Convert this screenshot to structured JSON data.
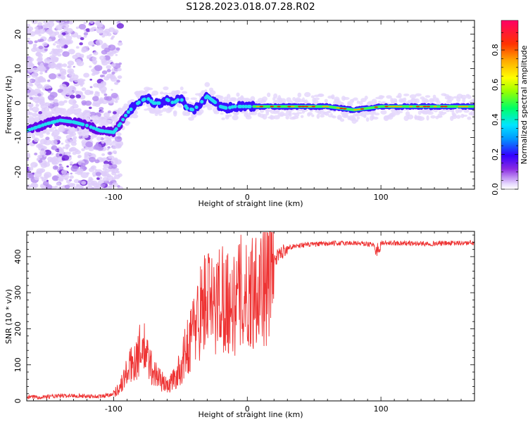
{
  "title": "S128.2023.018.07.28.R02",
  "chart_data": [
    {
      "type": "heatmap",
      "xlabel": "Height of straight line (km)",
      "ylabel": "Frequency (Hz)",
      "xlim": [
        -165,
        170
      ],
      "ylim": [
        -25,
        24
      ],
      "xticks": [
        -100,
        0,
        100
      ],
      "yticks": [
        -20,
        -10,
        0,
        10,
        20
      ],
      "colorbar": {
        "label": "Normalized spectral amplitude",
        "range": [
          0,
          0.97
        ],
        "ticks": [
          0.0,
          0.2,
          0.4,
          0.6,
          0.8
        ]
      },
      "ridge": {
        "x": [
          -165,
          -150,
          -140,
          -130,
          -120,
          -110,
          -100,
          -95,
          -90,
          -85,
          -80,
          -75,
          -70,
          -65,
          -60,
          -55,
          -50,
          -45,
          -40,
          -35,
          -30,
          -25,
          -20,
          -15,
          -10,
          -5,
          0,
          10,
          20,
          40,
          60,
          70,
          80,
          90,
          100,
          120,
          140,
          170
        ],
        "y": [
          -8,
          -6,
          -5,
          -5.5,
          -6.5,
          -8,
          -8.5,
          -6,
          -3,
          -1,
          0.5,
          1.5,
          0,
          0,
          1,
          0,
          1.5,
          -1.5,
          -2,
          0,
          2,
          0.5,
          -1,
          -1.5,
          -1,
          -1,
          -1,
          -1,
          -1,
          -1,
          -1,
          -1.5,
          -2,
          -1.5,
          -1,
          -1,
          -1,
          -1
        ]
      },
      "scatter_range": [
        -165,
        -95
      ]
    },
    {
      "type": "line",
      "xlabel": "Height of straight line (km)",
      "ylabel": "SNR (10 * v/v)",
      "xlim": [
        -165,
        170
      ],
      "ylim": [
        0,
        470
      ],
      "xticks": [
        -100,
        0,
        100
      ],
      "yticks": [
        0,
        100,
        200,
        300,
        400
      ],
      "series": [
        {
          "color": "#ee3333",
          "x": [
            -165,
            -150,
            -130,
            -110,
            -100,
            -95,
            -90,
            -85,
            -80,
            -78,
            -75,
            -70,
            -65,
            -60,
            -55,
            -50,
            -45,
            -40,
            -35,
            -30,
            -25,
            -20,
            -15,
            -10,
            -5,
            0,
            5,
            10,
            15,
            20,
            25,
            30,
            40,
            50,
            60,
            80,
            95,
            100,
            110,
            130,
            150,
            170
          ],
          "y": [
            10,
            12,
            15,
            12,
            20,
            40,
            80,
            110,
            140,
            150,
            120,
            80,
            60,
            40,
            60,
            90,
            150,
            200,
            250,
            290,
            250,
            300,
            280,
            260,
            300,
            280,
            320,
            340,
            330,
            390,
            410,
            425,
            432,
            434,
            436,
            438,
            433,
            436,
            438,
            436,
            437,
            438
          ]
        }
      ]
    }
  ]
}
